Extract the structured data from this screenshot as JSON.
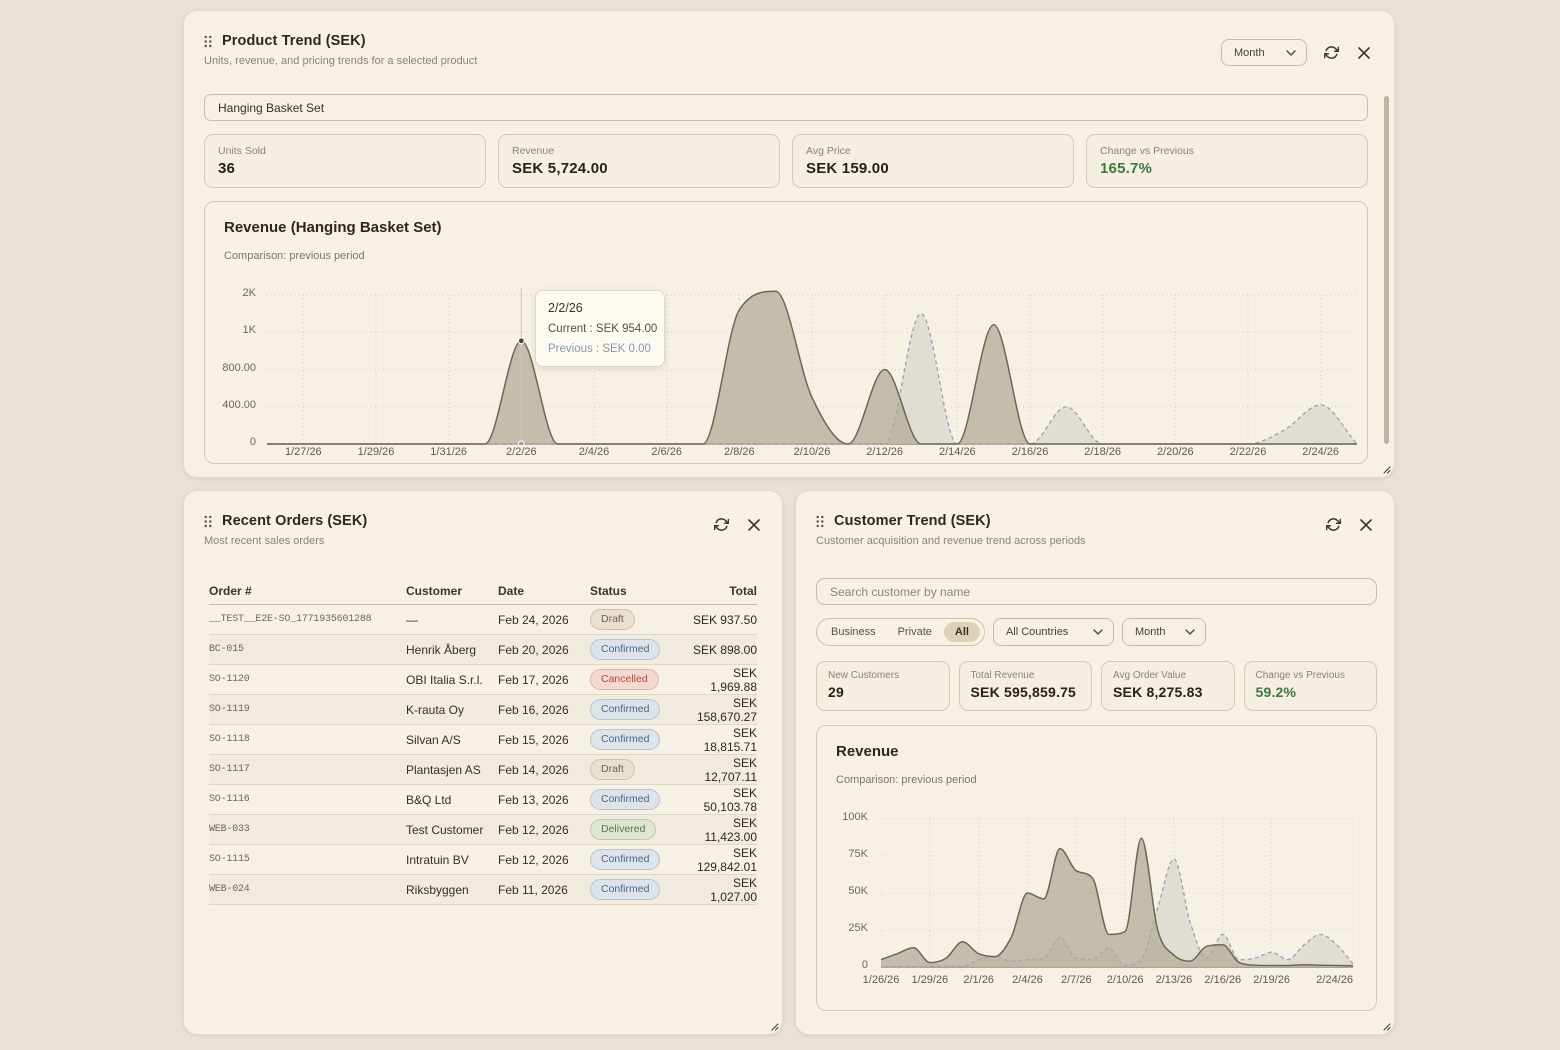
{
  "theme": {
    "page_bg": "#e8e2d6",
    "panel_bg": "#f7f1e5",
    "accent_green": "#3a7a41",
    "current_series_color": "#6d675a",
    "current_series_fill": "#b2a994",
    "previous_series_color": "#99a1b1",
    "previous_series_fill": "#dcdad1",
    "status_colors": {
      "draft": "#6e6552",
      "confirmed": "#49678a",
      "cancelled": "#b14a34",
      "delivered": "#567a40"
    }
  },
  "product_trend": {
    "title": "Product Trend (SEK)",
    "subtitle": "Units, revenue, and pricing trends for a selected product",
    "period_select": "Month",
    "product_input": "Hanging Basket Set",
    "stats": [
      {
        "label": "Units Sold",
        "value": "36"
      },
      {
        "label": "Revenue",
        "value": "SEK 5,724.00"
      },
      {
        "label": "Avg Price",
        "value": "SEK 159.00"
      },
      {
        "label": "Change vs Previous",
        "value": "165.7%",
        "accent": "green"
      }
    ]
  },
  "recent_orders": {
    "title": "Recent Orders (SEK)",
    "subtitle": "Most recent sales orders",
    "columns": [
      "Order #",
      "Customer",
      "Date",
      "Status",
      "Total"
    ],
    "rows": [
      {
        "order": "__TEST__E2E-SO_1771935601288",
        "customer": "—",
        "date": "Feb 24, 2026",
        "status": "Draft",
        "total": "SEK 937.50"
      },
      {
        "order": "BC-015",
        "customer": "Henrik Åberg",
        "date": "Feb 20, 2026",
        "status": "Confirmed",
        "total": "SEK 898.00"
      },
      {
        "order": "SO-1120",
        "customer": "OBI Italia S.r.l.",
        "date": "Feb 17, 2026",
        "status": "Cancelled",
        "total": "SEK 1,969.88"
      },
      {
        "order": "SO-1119",
        "customer": "K-rauta Oy",
        "date": "Feb 16, 2026",
        "status": "Confirmed",
        "total": "SEK 158,670.27"
      },
      {
        "order": "SO-1118",
        "customer": "Silvan A/S",
        "date": "Feb 15, 2026",
        "status": "Confirmed",
        "total": "SEK 18,815.71"
      },
      {
        "order": "SO-1117",
        "customer": "Plantasjen AS",
        "date": "Feb 14, 2026",
        "status": "Draft",
        "total": "SEK 12,707.11"
      },
      {
        "order": "SO-1116",
        "customer": "B&Q Ltd",
        "date": "Feb 13, 2026",
        "status": "Confirmed",
        "total": "SEK 50,103.78"
      },
      {
        "order": "WEB-033",
        "customer": "Test Customer",
        "date": "Feb 12, 2026",
        "status": "Delivered",
        "total": "SEK 11,423.00"
      },
      {
        "order": "SO-1115",
        "customer": "Intratuin BV",
        "date": "Feb 12, 2026",
        "status": "Confirmed",
        "total": "SEK 129,842.01"
      },
      {
        "order": "WEB-024",
        "customer": "Riksbyggen",
        "date": "Feb 11, 2026",
        "status": "Confirmed",
        "total": "SEK 1,027.00"
      }
    ]
  },
  "customer_trend": {
    "title": "Customer Trend (SEK)",
    "subtitle": "Customer acquisition and revenue trend across periods",
    "search_placeholder": "Search customer by name",
    "segments": [
      "Business",
      "Private",
      "All"
    ],
    "segment_active": "All",
    "country_select": "All Countries",
    "period_select": "Month",
    "stats": [
      {
        "label": "New Customers",
        "value": "29"
      },
      {
        "label": "Total Revenue",
        "value": "SEK 595,859.75"
      },
      {
        "label": "Avg Order Value",
        "value": "SEK 8,275.83"
      },
      {
        "label": "Change vs Previous",
        "value": "59.2%",
        "accent": "green"
      }
    ]
  },
  "chart_data": [
    {
      "type": "area",
      "title": "Revenue (Hanging Basket Set)",
      "subtitle": "Comparison: previous period",
      "legend_position": "none",
      "grid": true,
      "y_ticks": [
        {
          "label": "0",
          "value": 0
        },
        {
          "label": "400.00",
          "value": 400
        },
        {
          "label": "800.00",
          "value": 800
        },
        {
          "label": "1K",
          "value": 1000
        },
        {
          "label": "2K",
          "value": 2000
        }
      ],
      "x_domain_days": 30,
      "x_ticks": [
        {
          "label": "1/27/26",
          "day": 1
        },
        {
          "label": "1/29/26",
          "day": 3
        },
        {
          "label": "1/31/26",
          "day": 5
        },
        {
          "label": "2/2/26",
          "day": 7
        },
        {
          "label": "2/4/26",
          "day": 9
        },
        {
          "label": "2/6/26",
          "day": 11
        },
        {
          "label": "2/8/26",
          "day": 13
        },
        {
          "label": "2/10/26",
          "day": 15
        },
        {
          "label": "2/12/26",
          "day": 17
        },
        {
          "label": "2/14/26",
          "day": 19
        },
        {
          "label": "2/16/26",
          "day": 21
        },
        {
          "label": "2/18/26",
          "day": 23
        },
        {
          "label": "2/20/26",
          "day": 25
        },
        {
          "label": "2/22/26",
          "day": 27
        },
        {
          "label": "2/24/26",
          "day": 29
        }
      ],
      "series": [
        {
          "name": "Previous",
          "style": "dashed",
          "values": [
            0,
            0,
            0,
            0,
            0,
            0,
            0,
            0,
            0,
            0,
            0,
            0,
            0,
            0,
            0,
            0,
            0,
            0,
            1500,
            0,
            0,
            0,
            400,
            0,
            0,
            0,
            0,
            0,
            150,
            420,
            0
          ]
        },
        {
          "name": "Current",
          "style": "solid",
          "values": [
            0,
            0,
            0,
            0,
            0,
            0,
            0,
            954,
            0,
            0,
            0,
            0,
            0,
            1600,
            2100,
            500,
            0,
            800,
            0,
            0,
            1200,
            0,
            0,
            0,
            0,
            0,
            0,
            0,
            0,
            0,
            0
          ]
        }
      ],
      "tooltip": {
        "day": 7,
        "date": "2/2/26",
        "current": "Current : SEK 954.00",
        "previous": "Previous : SEK 0.00",
        "current_value": 954,
        "previous_value": 0
      }
    },
    {
      "type": "area",
      "title": "Revenue",
      "subtitle": "Comparison: previous period",
      "legend_position": "none",
      "grid": true,
      "y_ticks": [
        {
          "label": "0",
          "value": 0
        },
        {
          "label": "25K",
          "value": 25000
        },
        {
          "label": "50K",
          "value": 50000
        },
        {
          "label": "75K",
          "value": 75000
        },
        {
          "label": "100K",
          "value": 100000
        }
      ],
      "x_domain_days": 29,
      "x_ticks": [
        {
          "label": "1/26/26",
          "day": 0
        },
        {
          "label": "1/29/26",
          "day": 3
        },
        {
          "label": "2/1/26",
          "day": 6
        },
        {
          "label": "2/4/26",
          "day": 9
        },
        {
          "label": "2/7/26",
          "day": 12
        },
        {
          "label": "2/10/26",
          "day": 15
        },
        {
          "label": "2/13/26",
          "day": 18
        },
        {
          "label": "2/16/26",
          "day": 21
        },
        {
          "label": "2/19/26",
          "day": 24
        },
        {
          "label": "2/24/26",
          "day": 29
        }
      ],
      "series": [
        {
          "name": "Previous",
          "style": "dashed",
          "values": [
            0,
            0,
            0,
            500,
            500,
            500,
            5000,
            7000,
            4000,
            5000,
            6000,
            20000,
            6000,
            5000,
            13000,
            1000,
            5000,
            40000,
            73000,
            30000,
            6000,
            22000,
            5000,
            6000,
            10000,
            5000,
            15000,
            22000,
            15000,
            2000
          ]
        },
        {
          "name": "Current",
          "style": "solid",
          "values": [
            5000,
            9000,
            13000,
            3000,
            6000,
            17000,
            9000,
            7000,
            20000,
            50000,
            46000,
            80000,
            65000,
            60000,
            22000,
            24000,
            87000,
            25000,
            8000,
            4000,
            14000,
            15000,
            3000,
            1200,
            1000,
            1000,
            1500,
            1200,
            1000,
            800
          ]
        }
      ]
    }
  ]
}
